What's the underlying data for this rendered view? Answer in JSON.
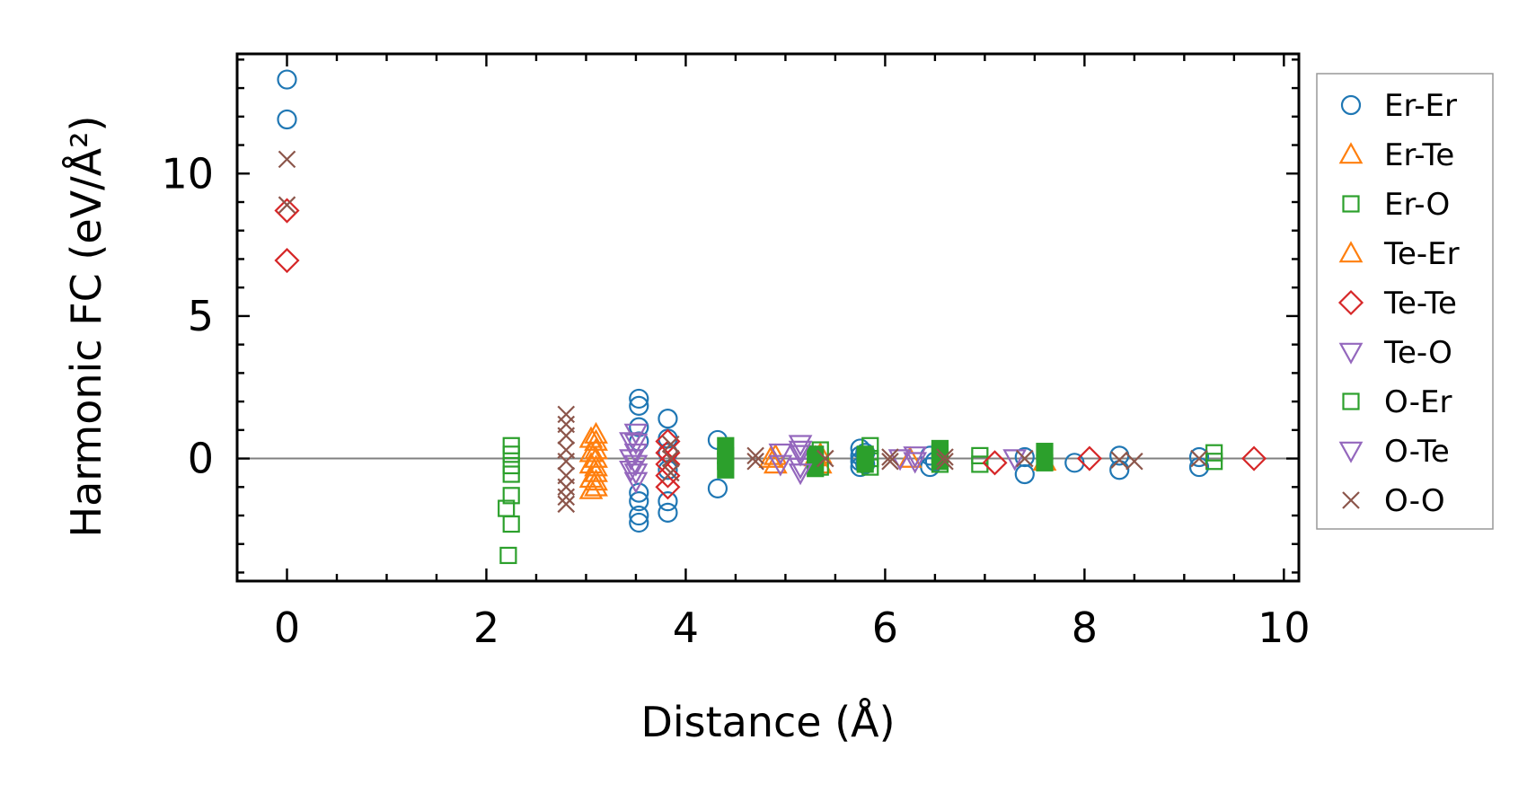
{
  "chart_data": {
    "type": "scatter",
    "xlabel": "Distance (Å)",
    "ylabel": "Harmonic FC (eV/Å²)",
    "xlim": [
      -0.5,
      10.15
    ],
    "ylim": [
      -4.3,
      14.2
    ],
    "xticks": [
      0,
      2,
      4,
      6,
      8,
      10
    ],
    "yticks": [
      0,
      5,
      10
    ],
    "zero_line": true,
    "legend_position": "right, outside plot",
    "series": [
      {
        "name": "Er-Er",
        "marker": "circle",
        "color": "#1f77b4",
        "points": [
          [
            0.0,
            13.3
          ],
          [
            0.0,
            11.9
          ],
          [
            3.53,
            2.1
          ],
          [
            3.53,
            1.85
          ],
          [
            3.53,
            1.1
          ],
          [
            3.53,
            0.6
          ],
          [
            3.53,
            -1.2
          ],
          [
            3.53,
            -1.5
          ],
          [
            3.53,
            -2.0
          ],
          [
            3.53,
            -2.25
          ],
          [
            3.82,
            1.4
          ],
          [
            3.82,
            0.7
          ],
          [
            3.82,
            0.2
          ],
          [
            3.82,
            -0.4
          ],
          [
            3.82,
            -1.5
          ],
          [
            3.82,
            -1.9
          ],
          [
            4.32,
            0.65
          ],
          [
            4.32,
            -1.05
          ],
          [
            5.75,
            0.35
          ],
          [
            5.75,
            0.1
          ],
          [
            5.75,
            -0.1
          ],
          [
            5.75,
            -0.3
          ],
          [
            5.8,
            0.2
          ],
          [
            5.8,
            -0.2
          ],
          [
            6.45,
            0.1
          ],
          [
            6.45,
            -0.3
          ],
          [
            6.5,
            -0.1
          ],
          [
            7.4,
            0.05
          ],
          [
            7.4,
            -0.55
          ],
          [
            7.9,
            -0.15
          ],
          [
            8.35,
            0.1
          ],
          [
            8.35,
            -0.4
          ],
          [
            9.15,
            0.05
          ],
          [
            9.15,
            -0.3
          ]
        ]
      },
      {
        "name": "Er-Te",
        "marker": "triangle-up",
        "color": "#ff7f0e",
        "points": [
          [
            3.1,
            0.85
          ],
          [
            3.1,
            0.6
          ],
          [
            3.1,
            0.3
          ],
          [
            3.1,
            0.0
          ],
          [
            3.1,
            -0.3
          ],
          [
            3.1,
            -0.5
          ],
          [
            3.1,
            -0.8
          ],
          [
            3.1,
            -1.0
          ],
          [
            4.9,
            0.1
          ],
          [
            4.9,
            -0.2
          ],
          [
            5.35,
            0.15
          ],
          [
            5.35,
            -0.2
          ],
          [
            6.25,
            0.0
          ],
          [
            7.6,
            -0.1
          ]
        ]
      },
      {
        "name": "Er-O",
        "marker": "square",
        "color": "#2ca02c",
        "filled": false,
        "points": [
          [
            2.25,
            0.45
          ],
          [
            2.25,
            0.15
          ],
          [
            2.25,
            -0.25
          ],
          [
            2.25,
            -0.55
          ],
          [
            2.25,
            -1.3
          ],
          [
            2.2,
            -1.75
          ],
          [
            2.25,
            -2.3
          ],
          [
            2.22,
            -3.4
          ],
          [
            5.35,
            0.3
          ],
          [
            5.35,
            -0.3
          ],
          [
            5.85,
            0.45
          ],
          [
            5.85,
            0.0
          ],
          [
            5.85,
            -0.3
          ],
          [
            6.55,
            0.2
          ],
          [
            6.55,
            -0.2
          ],
          [
            6.95,
            0.1
          ],
          [
            6.95,
            -0.2
          ],
          [
            9.3,
            0.2
          ],
          [
            9.3,
            -0.1
          ]
        ]
      },
      {
        "name": "Te-Er",
        "marker": "triangle-up",
        "color": "#ff7f0e",
        "points": [
          [
            3.05,
            0.7
          ],
          [
            3.05,
            0.2
          ],
          [
            3.05,
            -0.2
          ],
          [
            3.05,
            -0.7
          ],
          [
            3.05,
            -1.1
          ],
          [
            4.85,
            0.0
          ],
          [
            5.3,
            0.05
          ]
        ]
      },
      {
        "name": "Te-Te",
        "marker": "diamond",
        "color": "#d62728",
        "points": [
          [
            0.0,
            8.7
          ],
          [
            0.0,
            6.95
          ],
          [
            3.82,
            0.6
          ],
          [
            3.82,
            0.2
          ],
          [
            3.82,
            -0.2
          ],
          [
            3.82,
            -0.6
          ],
          [
            3.82,
            -1.0
          ],
          [
            7.1,
            -0.15
          ],
          [
            8.05,
            0.0
          ],
          [
            9.7,
            0.0
          ]
        ]
      },
      {
        "name": "Te-O",
        "marker": "triangle-down",
        "color": "#9467bd",
        "points": [
          [
            3.5,
            0.9
          ],
          [
            3.5,
            0.55
          ],
          [
            3.5,
            0.2
          ],
          [
            3.5,
            -0.2
          ],
          [
            3.5,
            -0.5
          ],
          [
            3.5,
            -0.8
          ],
          [
            4.95,
            0.2
          ],
          [
            4.95,
            -0.2
          ],
          [
            5.15,
            0.5
          ],
          [
            5.15,
            0.15
          ],
          [
            5.15,
            -0.3
          ],
          [
            6.3,
            0.1
          ],
          [
            6.3,
            -0.1
          ]
        ]
      },
      {
        "name": "O-Er",
        "marker": "square",
        "color": "#2ca02c",
        "filled": true,
        "points": [
          [
            4.4,
            0.45
          ],
          [
            4.4,
            0.1
          ],
          [
            4.4,
            -0.1
          ],
          [
            4.4,
            -0.4
          ],
          [
            5.3,
            0.15
          ],
          [
            5.3,
            -0.35
          ],
          [
            5.8,
            0.15
          ],
          [
            5.8,
            -0.2
          ],
          [
            6.55,
            0.35
          ],
          [
            6.55,
            -0.1
          ],
          [
            7.6,
            0.25
          ],
          [
            7.6,
            -0.15
          ]
        ]
      },
      {
        "name": "O-Te",
        "marker": "triangle-down",
        "color": "#9467bd",
        "points": [
          [
            3.45,
            0.6
          ],
          [
            3.45,
            0.0
          ],
          [
            3.45,
            -0.4
          ],
          [
            5.15,
            0.3
          ],
          [
            5.15,
            -0.5
          ],
          [
            6.15,
            0.0
          ],
          [
            7.3,
            0.0
          ]
        ]
      },
      {
        "name": "O-O",
        "marker": "x",
        "color": "#8c564b",
        "points": [
          [
            0.0,
            10.5
          ],
          [
            0.0,
            8.9
          ],
          [
            2.8,
            1.55
          ],
          [
            2.8,
            1.2
          ],
          [
            2.8,
            0.8
          ],
          [
            2.8,
            0.3
          ],
          [
            2.8,
            -0.1
          ],
          [
            2.8,
            -0.6
          ],
          [
            2.8,
            -1.0
          ],
          [
            2.8,
            -1.35
          ],
          [
            2.8,
            -1.6
          ],
          [
            3.85,
            0.5
          ],
          [
            3.85,
            0.0
          ],
          [
            3.85,
            -0.5
          ],
          [
            4.7,
            0.1
          ],
          [
            4.7,
            -0.1
          ],
          [
            5.4,
            0.0
          ],
          [
            6.05,
            0.05
          ],
          [
            6.05,
            -0.1
          ],
          [
            6.6,
            0.05
          ],
          [
            6.6,
            -0.1
          ],
          [
            7.4,
            0.0
          ],
          [
            8.35,
            -0.05
          ],
          [
            8.5,
            -0.1
          ],
          [
            9.15,
            0.0
          ]
        ]
      }
    ]
  }
}
